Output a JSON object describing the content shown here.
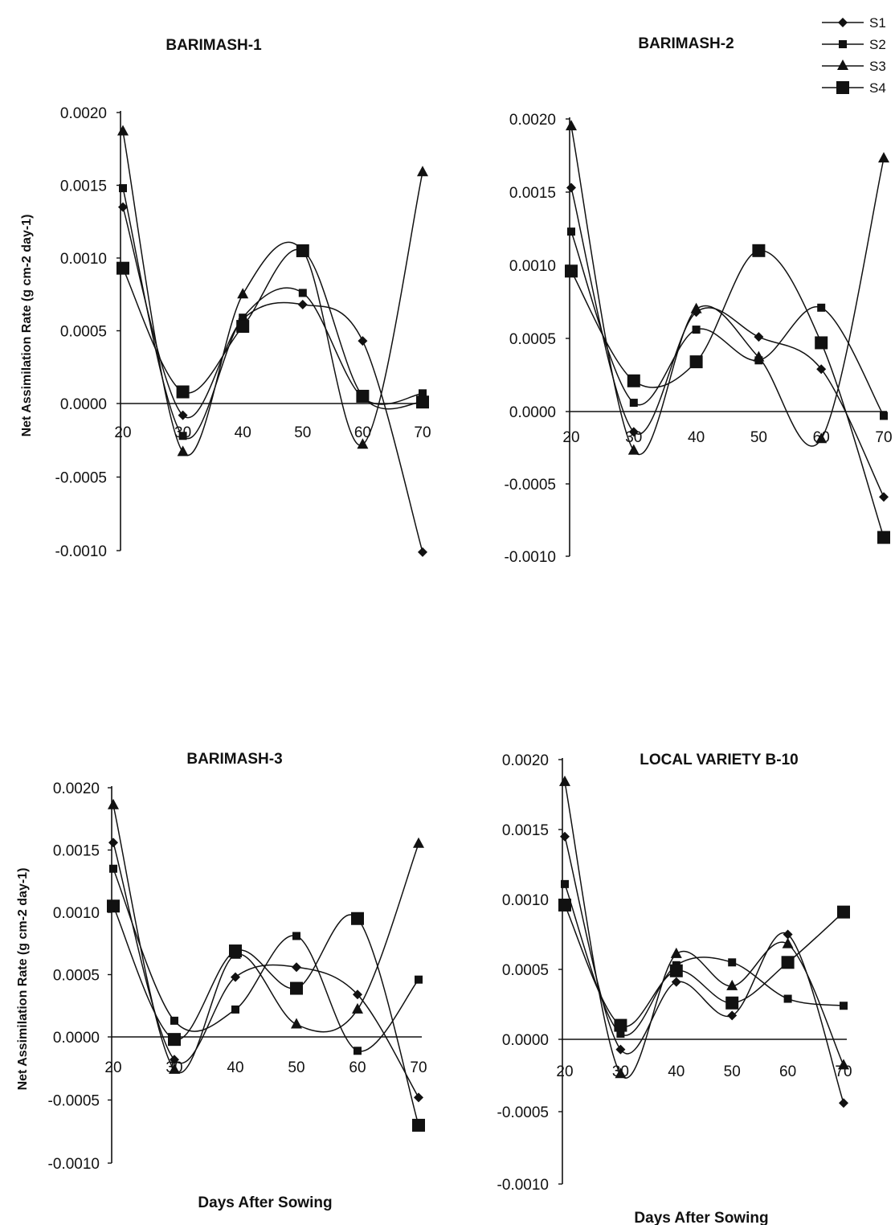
{
  "figure": {
    "legend": {
      "placement": "top-right",
      "entries": [
        {
          "name": "S1",
          "marker": "diamond"
        },
        {
          "name": "S2",
          "marker": "small-square"
        },
        {
          "name": "S3",
          "marker": "triangle"
        },
        {
          "name": "S4",
          "marker": "large-square"
        }
      ]
    }
  },
  "chart_data": [
    {
      "type": "line",
      "title": "BARIMASH-1",
      "ylabel": "Net Assimilation Rate (g cm-2 day-1)",
      "xlabel": "",
      "x": [
        20,
        30,
        40,
        50,
        60,
        70
      ],
      "ylim": [
        -0.001,
        0.002
      ],
      "yticks": [
        "0.0020",
        "0.0015",
        "0.0010",
        "0.0005",
        "0.0000",
        "-0.0005",
        "-0.0010"
      ],
      "xticks": [
        "20",
        "30",
        "40",
        "50",
        "60",
        "70"
      ],
      "series": [
        {
          "name": "S1",
          "values": [
            0.00135,
            -8e-05,
            0.00058,
            0.00068,
            0.00043,
            -0.00101
          ]
        },
        {
          "name": "S2",
          "values": [
            0.00148,
            -0.00022,
            0.00059,
            0.00076,
            4e-05,
            7e-05
          ]
        },
        {
          "name": "S3",
          "values": [
            0.00187,
            -0.00033,
            0.00075,
            0.00105,
            -0.00028,
            0.00159
          ]
        },
        {
          "name": "S4",
          "values": [
            0.00093,
            8e-05,
            0.00053,
            0.00105,
            5e-05,
            1e-05
          ]
        }
      ]
    },
    {
      "type": "line",
      "title": "BARIMASH-2",
      "ylabel": "",
      "xlabel": "",
      "x": [
        20,
        30,
        40,
        50,
        60,
        70
      ],
      "ylim": [
        -0.001,
        0.002
      ],
      "yticks": [
        "0.0020",
        "0.0015",
        "0.0010",
        "0.0005",
        "0.0000",
        "-0.0005",
        "-0.0010"
      ],
      "xticks": [
        "20",
        "30",
        "40",
        "50",
        "60",
        "70"
      ],
      "series": [
        {
          "name": "S1",
          "values": [
            0.00153,
            -0.00014,
            0.00068,
            0.00051,
            0.00029,
            -0.00059
          ]
        },
        {
          "name": "S2",
          "values": [
            0.00123,
            6e-05,
            0.00056,
            0.00035,
            0.00071,
            -3e-05
          ]
        },
        {
          "name": "S3",
          "values": [
            0.00195,
            -0.00027,
            0.0007,
            0.00037,
            -0.00019,
            0.00173
          ]
        },
        {
          "name": "S4",
          "values": [
            0.00096,
            0.00021,
            0.00034,
            0.0011,
            0.00047,
            -0.00087
          ]
        }
      ]
    },
    {
      "type": "line",
      "title": "BARIMASH-3",
      "ylabel": "Net Assimilation Rate (g cm-2 day-1)",
      "xlabel": "Days After Sowing",
      "x": [
        20,
        30,
        40,
        50,
        60,
        70
      ],
      "ylim": [
        -0.001,
        0.002
      ],
      "yticks": [
        "0.0020",
        "0.0015",
        "0.0010",
        "0.0005",
        "0.0000",
        "-0.0005",
        "-0.0010"
      ],
      "xticks": [
        "20",
        "30",
        "40",
        "50",
        "60",
        "70"
      ],
      "series": [
        {
          "name": "S1",
          "values": [
            0.00156,
            -0.00018,
            0.00048,
            0.00056,
            0.00034,
            -0.00048
          ]
        },
        {
          "name": "S2",
          "values": [
            0.00135,
            0.00013,
            0.00022,
            0.00081,
            -0.00011,
            0.00046
          ]
        },
        {
          "name": "S3",
          "values": [
            0.00186,
            -0.00026,
            0.00066,
            0.0001,
            0.00022,
            0.00155
          ]
        },
        {
          "name": "S4",
          "values": [
            0.00105,
            -2e-05,
            0.00069,
            0.00039,
            0.00095,
            -0.0007
          ]
        }
      ]
    },
    {
      "type": "line",
      "title": "LOCAL VARIETY B-10",
      "ylabel": "",
      "xlabel": "Days After Sowing",
      "x": [
        20,
        30,
        40,
        50,
        60,
        70
      ],
      "ylim": [
        -0.001,
        0.002
      ],
      "yticks": [
        "0.0020",
        "0.0015",
        "0.0010",
        "0.0005",
        "0.0000",
        "-0.0005",
        "-0.0010"
      ],
      "xticks": [
        "20",
        "30",
        "40",
        "50",
        "60",
        "70"
      ],
      "series": [
        {
          "name": "S1",
          "values": [
            0.00145,
            -7e-05,
            0.00041,
            0.00017,
            0.00075,
            -0.00044
          ]
        },
        {
          "name": "S2",
          "values": [
            0.00111,
            4e-05,
            0.00053,
            0.00055,
            0.00029,
            0.00024
          ]
        },
        {
          "name": "S3",
          "values": [
            0.00184,
            -0.00024,
            0.00061,
            0.00038,
            0.00068,
            -0.00018
          ]
        },
        {
          "name": "S4",
          "values": [
            0.00096,
            0.0001,
            0.00049,
            0.00026,
            0.00055,
            0.00091
          ]
        }
      ]
    }
  ]
}
